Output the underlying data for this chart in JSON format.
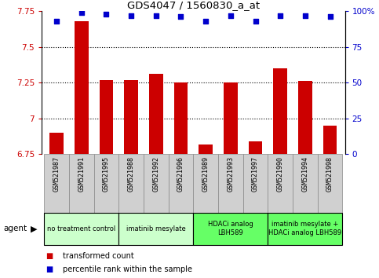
{
  "title": "GDS4047 / 1560830_a_at",
  "samples": [
    "GSM521987",
    "GSM521991",
    "GSM521995",
    "GSM521988",
    "GSM521992",
    "GSM521996",
    "GSM521989",
    "GSM521993",
    "GSM521997",
    "GSM521990",
    "GSM521994",
    "GSM521998"
  ],
  "bar_values": [
    6.9,
    7.68,
    7.27,
    7.27,
    7.31,
    7.25,
    6.82,
    7.25,
    6.84,
    7.35,
    7.26,
    6.95
  ],
  "scatter_values": [
    93,
    99,
    98,
    97,
    97,
    96,
    93,
    97,
    93,
    97,
    97,
    96
  ],
  "ylim_left": [
    6.75,
    7.75
  ],
  "ylim_right": [
    0,
    100
  ],
  "yticks_left": [
    6.75,
    7.0,
    7.25,
    7.5,
    7.75
  ],
  "yticks_right": [
    0,
    25,
    50,
    75,
    100
  ],
  "ytick_labels_left": [
    "6.75",
    "7",
    "7.25",
    "7.5",
    "7.75"
  ],
  "ytick_labels_right": [
    "0",
    "25",
    "50",
    "75",
    "100%"
  ],
  "bar_color": "#cc0000",
  "scatter_color": "#0000cc",
  "agent_groups": [
    {
      "label": "no treatment control",
      "start": 0,
      "end": 3,
      "color": "#ccffcc"
    },
    {
      "label": "imatinib mesylate",
      "start": 3,
      "end": 6,
      "color": "#ccffcc"
    },
    {
      "label": "HDACi analog\nLBH589",
      "start": 6,
      "end": 9,
      "color": "#66ff66"
    },
    {
      "label": "imatinib mesylate +\nHDACi analog LBH589",
      "start": 9,
      "end": 12,
      "color": "#66ff66"
    }
  ],
  "legend_bar_label": "transformed count",
  "legend_scatter_label": "percentile rank within the sample",
  "bar_width": 0.55,
  "sample_bg_color": "#d0d0d0",
  "sample_border_color": "#888888"
}
